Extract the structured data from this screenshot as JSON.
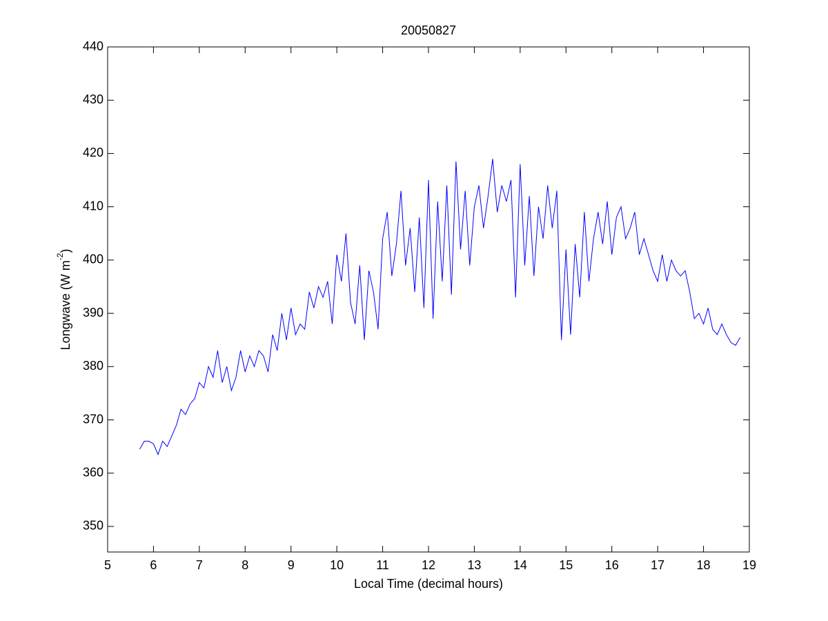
{
  "chart_data": {
    "type": "line",
    "title": "20050827",
    "xlabel": "Local Time (decimal hours)",
    "ylabel": {
      "text": "Longwave (W m",
      "superscript": "-2",
      "suffix": ")"
    },
    "xlim": [
      5,
      19
    ],
    "ylim": [
      345.2,
      440
    ],
    "xticks": [
      5,
      6,
      7,
      8,
      9,
      10,
      11,
      12,
      13,
      14,
      15,
      16,
      17,
      18,
      19
    ],
    "yticks": [
      350,
      360,
      370,
      380,
      390,
      400,
      410,
      420,
      430,
      440
    ],
    "grid": false,
    "series": [
      {
        "color": "#0000ff",
        "x": [
          5.7,
          5.8,
          5.9,
          6.0,
          6.1,
          6.2,
          6.3,
          6.4,
          6.5,
          6.6,
          6.7,
          6.8,
          6.9,
          7.0,
          7.1,
          7.2,
          7.3,
          7.4,
          7.5,
          7.6,
          7.7,
          7.8,
          7.9,
          8.0,
          8.1,
          8.2,
          8.3,
          8.4,
          8.5,
          8.6,
          8.7,
          8.8,
          8.9,
          9.0,
          9.1,
          9.2,
          9.3,
          9.4,
          9.5,
          9.6,
          9.7,
          9.8,
          9.9,
          10.0,
          10.1,
          10.2,
          10.3,
          10.4,
          10.5,
          10.6,
          10.7,
          10.8,
          10.9,
          11.0,
          11.1,
          11.2,
          11.3,
          11.4,
          11.5,
          11.6,
          11.7,
          11.8,
          11.9,
          12.0,
          12.1,
          12.2,
          12.3,
          12.4,
          12.5,
          12.6,
          12.7,
          12.8,
          12.9,
          13.0,
          13.1,
          13.2,
          13.3,
          13.4,
          13.5,
          13.6,
          13.7,
          13.8,
          13.9,
          14.0,
          14.1,
          14.2,
          14.3,
          14.4,
          14.5,
          14.6,
          14.7,
          14.8,
          14.9,
          15.0,
          15.1,
          15.2,
          15.3,
          15.4,
          15.5,
          15.6,
          15.7,
          15.8,
          15.9,
          16.0,
          16.1,
          16.2,
          16.3,
          16.4,
          16.5,
          16.6,
          16.7,
          16.8,
          16.9,
          17.0,
          17.1,
          17.2,
          17.3,
          17.4,
          17.5,
          17.6,
          17.7,
          17.8,
          17.9,
          18.0,
          18.1,
          18.2,
          18.3,
          18.4,
          18.5,
          18.6,
          18.7,
          18.8
        ],
        "values": [
          364.5,
          366,
          366,
          365.5,
          363.5,
          366,
          365,
          367,
          369,
          372,
          371,
          373,
          374,
          377,
          376,
          380,
          378,
          383,
          377,
          380,
          375.5,
          378,
          383,
          379,
          382,
          380,
          383,
          382,
          379,
          386,
          383,
          390,
          385,
          391,
          386,
          388,
          387,
          394,
          391,
          395,
          393,
          396,
          388,
          401,
          396,
          405,
          392,
          388,
          399,
          385,
          398,
          394,
          387,
          404,
          409,
          397,
          403,
          413,
          399,
          406,
          394,
          408,
          391,
          415,
          389,
          411,
          396,
          414,
          393.5,
          418.5,
          402,
          413,
          399,
          410,
          414,
          406,
          412,
          419,
          409,
          414,
          411,
          415,
          393,
          418,
          399,
          412,
          397,
          410,
          404,
          414,
          406,
          413,
          385,
          402,
          386,
          403,
          393,
          409,
          396,
          404,
          409,
          403,
          411,
          401,
          408,
          410,
          404,
          406,
          409,
          401,
          404,
          401,
          398,
          396,
          401,
          396,
          400,
          398,
          397,
          398,
          394,
          389,
          390,
          388,
          391,
          387,
          386,
          388,
          386,
          384.5,
          384,
          385.5
        ]
      }
    ]
  }
}
